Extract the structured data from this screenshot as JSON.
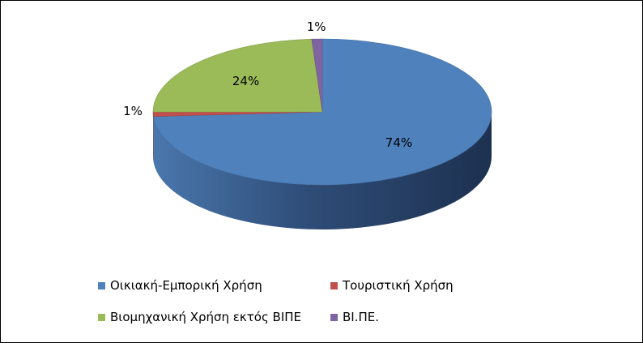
{
  "chart_data": {
    "type": "pie",
    "title": "",
    "categories": [
      "Οικιακή-Εμπορική Χρήση",
      "Τουριστική Χρήση",
      "Βιομηχανική Χρήση εκτός ΒΙΠΕ",
      "ΒΙ.ΠΕ."
    ],
    "values": [
      74,
      1,
      24,
      1
    ],
    "data_labels": [
      "74%",
      "1%",
      "24%",
      "1%"
    ],
    "colors": [
      "#4f81bd",
      "#c0504d",
      "#9bbb59",
      "#8064a2"
    ],
    "style": "3d-pie",
    "legend": "bottom"
  }
}
